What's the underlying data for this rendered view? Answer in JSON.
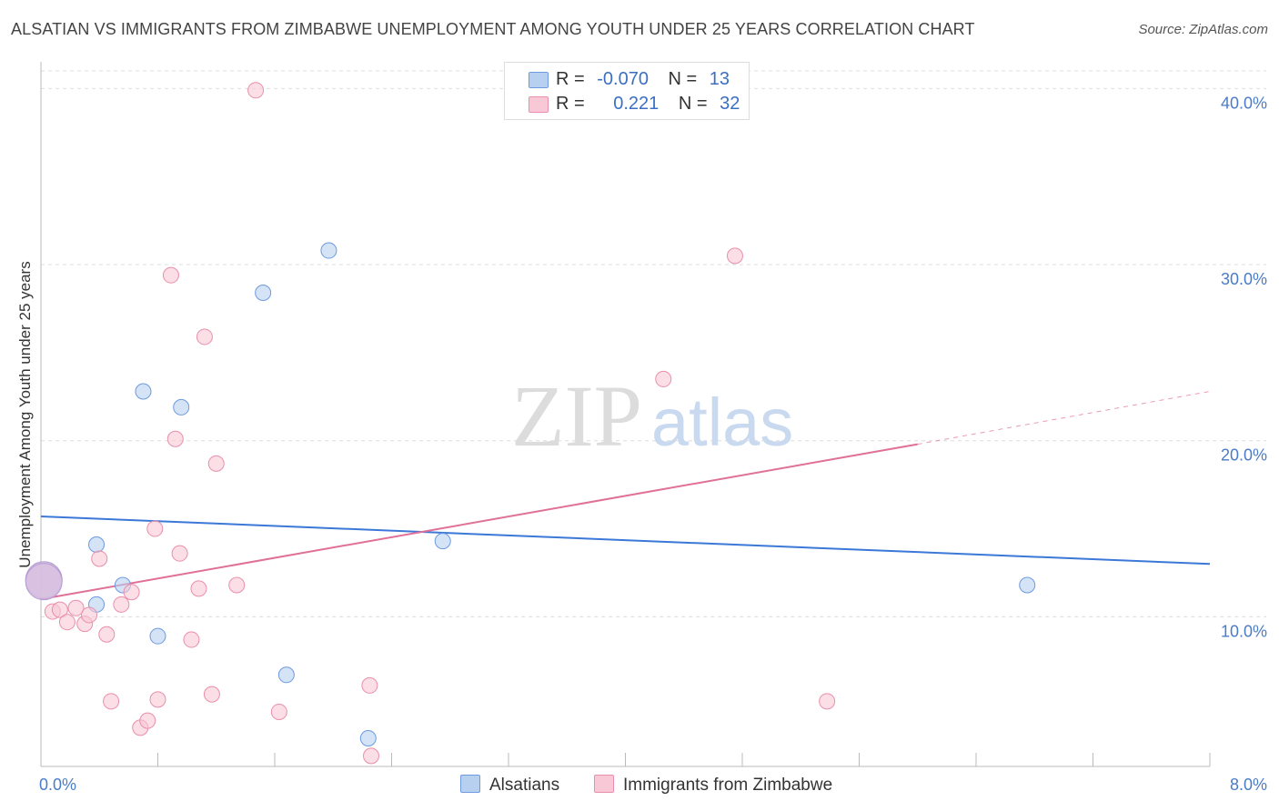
{
  "header": {
    "title": "ALSATIAN VS IMMIGRANTS FROM ZIMBABWE UNEMPLOYMENT AMONG YOUTH UNDER 25 YEARS CORRELATION CHART",
    "source": "Source: ZipAtlas.com"
  },
  "legend": {
    "r_label": "R =",
    "n_label": "N =",
    "series": [
      {
        "name": "Alsatians",
        "r": "-0.070",
        "n": "13",
        "fill": "#b8d0f0",
        "stroke": "#6d9ae0"
      },
      {
        "name": "Immigrants from Zimbabwe",
        "r": "0.221",
        "n": "32",
        "fill": "#f9c8d6",
        "stroke": "#e98fab"
      }
    ]
  },
  "watermark": {
    "part1": "ZIP",
    "part2": "atlas"
  },
  "colors": {
    "blue_line": "#3c78d8",
    "pink_line": "#e07098",
    "tick_text": "#4a7cc7",
    "grid": "#dddddd"
  },
  "chart_data": {
    "type": "scatter",
    "title": "ALSATIAN VS IMMIGRANTS FROM ZIMBABWE UNEMPLOYMENT AMONG YOUTH UNDER 25 YEARS CORRELATION CHART",
    "xlabel": "",
    "ylabel": "Unemployment Among Youth under 25 years",
    "xlim": [
      0,
      8
    ],
    "ylim": [
      1.5,
      41
    ],
    "x_tick_labels": [
      "0.0%",
      "8.0%"
    ],
    "y_ticks": [
      10,
      20,
      30,
      40
    ],
    "y_tick_labels": [
      "10.0%",
      "20.0%",
      "30.0%",
      "40.0%"
    ],
    "series": [
      {
        "name": "Alsatians",
        "points": [
          {
            "x": 0.02,
            "y": 12.1,
            "big": true
          },
          {
            "x": 0.38,
            "y": 14.1
          },
          {
            "x": 0.38,
            "y": 10.7
          },
          {
            "x": 0.56,
            "y": 11.8
          },
          {
            "x": 0.7,
            "y": 22.8
          },
          {
            "x": 0.8,
            "y": 8.9
          },
          {
            "x": 0.96,
            "y": 21.9
          },
          {
            "x": 1.52,
            "y": 28.4
          },
          {
            "x": 1.68,
            "y": 6.7
          },
          {
            "x": 1.97,
            "y": 30.8
          },
          {
            "x": 2.24,
            "y": 3.1
          },
          {
            "x": 2.75,
            "y": 14.3
          },
          {
            "x": 6.75,
            "y": 11.8
          }
        ],
        "trend": {
          "x0": 0,
          "y0": 15.7,
          "x1": 8,
          "y1": 13.0
        }
      },
      {
        "name": "Immigrants from Zimbabwe",
        "points": [
          {
            "x": 0.02,
            "y": 12.0,
            "big": true
          },
          {
            "x": 0.08,
            "y": 10.3
          },
          {
            "x": 0.13,
            "y": 10.4
          },
          {
            "x": 0.18,
            "y": 9.7
          },
          {
            "x": 0.24,
            "y": 10.5
          },
          {
            "x": 0.3,
            "y": 9.6
          },
          {
            "x": 0.33,
            "y": 10.1
          },
          {
            "x": 0.4,
            "y": 13.3
          },
          {
            "x": 0.45,
            "y": 9.0
          },
          {
            "x": 0.48,
            "y": 5.2
          },
          {
            "x": 0.55,
            "y": 10.7
          },
          {
            "x": 0.62,
            "y": 11.4
          },
          {
            "x": 0.68,
            "y": 3.7
          },
          {
            "x": 0.73,
            "y": 4.1
          },
          {
            "x": 0.78,
            "y": 15.0
          },
          {
            "x": 0.8,
            "y": 5.3
          },
          {
            "x": 0.89,
            "y": 29.4
          },
          {
            "x": 0.92,
            "y": 20.1
          },
          {
            "x": 0.95,
            "y": 13.6
          },
          {
            "x": 1.03,
            "y": 8.7
          },
          {
            "x": 1.08,
            "y": 11.6
          },
          {
            "x": 1.12,
            "y": 25.9
          },
          {
            "x": 1.17,
            "y": 5.6
          },
          {
            "x": 1.2,
            "y": 18.7
          },
          {
            "x": 1.34,
            "y": 11.8
          },
          {
            "x": 1.47,
            "y": 39.9
          },
          {
            "x": 1.63,
            "y": 4.6
          },
          {
            "x": 2.26,
            "y": 2.1
          },
          {
            "x": 2.25,
            "y": 6.1
          },
          {
            "x": 4.26,
            "y": 23.5
          },
          {
            "x": 4.75,
            "y": 30.5
          },
          {
            "x": 5.38,
            "y": 5.2
          }
        ],
        "trend": {
          "x0": 0,
          "y0": 11.0,
          "x1": 6.0,
          "y1": 19.8,
          "dash_x1": 8,
          "dash_y1": 22.8
        }
      }
    ]
  }
}
